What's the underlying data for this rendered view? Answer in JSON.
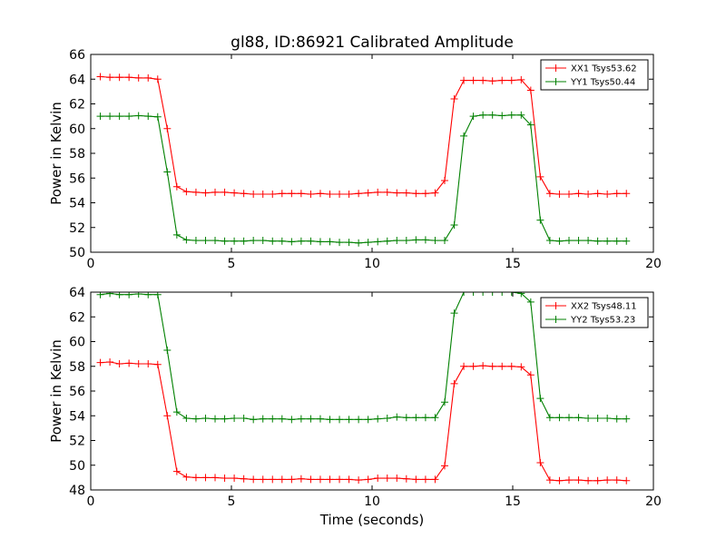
{
  "chart_data": [
    {
      "type": "line",
      "title": "gl88, ID:86921 Calibrated Amplitude",
      "xlabel": "",
      "ylabel": "Power in Kelvin",
      "xlim": [
        0,
        20
      ],
      "ylim": [
        50,
        66
      ],
      "xticks": [
        0,
        5,
        10,
        15,
        20
      ],
      "yticks": [
        50,
        52,
        54,
        56,
        58,
        60,
        62,
        64,
        66
      ],
      "grid": false,
      "legend_position": "top-right",
      "x": [
        0.34,
        0.68,
        1.02,
        1.36,
        1.7,
        2.04,
        2.38,
        2.72,
        3.06,
        3.4,
        3.74,
        4.08,
        4.42,
        4.76,
        5.1,
        5.44,
        5.78,
        6.12,
        6.46,
        6.8,
        7.14,
        7.48,
        7.82,
        8.16,
        8.5,
        8.84,
        9.18,
        9.52,
        9.86,
        10.2,
        10.54,
        10.88,
        11.22,
        11.56,
        11.9,
        12.24,
        12.58,
        12.92,
        13.26,
        13.6,
        13.94,
        14.28,
        14.62,
        14.96,
        15.3,
        15.64,
        15.98,
        16.32,
        16.66,
        17.0,
        17.34,
        17.68,
        18.02,
        18.36,
        18.7,
        19.04
      ],
      "series": [
        {
          "name": "XX1 Tsys53.62",
          "color": "#ff0000",
          "values": [
            64.2,
            64.15,
            64.15,
            64.15,
            64.1,
            64.1,
            64.0,
            60.0,
            55.3,
            54.9,
            54.85,
            54.8,
            54.85,
            54.85,
            54.8,
            54.75,
            54.7,
            54.7,
            54.7,
            54.75,
            54.75,
            54.75,
            54.7,
            54.75,
            54.7,
            54.7,
            54.7,
            54.75,
            54.8,
            54.85,
            54.85,
            54.8,
            54.8,
            54.75,
            54.75,
            54.8,
            55.8,
            62.4,
            63.9,
            63.9,
            63.9,
            63.85,
            63.9,
            63.9,
            63.95,
            63.1,
            56.1,
            54.75,
            54.7,
            54.7,
            54.75,
            54.7,
            54.75,
            54.7,
            54.75,
            54.75
          ]
        },
        {
          "name": "YY1 Tsys50.44",
          "color": "#008000",
          "values": [
            61.0,
            61.0,
            61.0,
            61.0,
            61.05,
            61.0,
            60.95,
            56.5,
            51.4,
            51.0,
            50.95,
            50.95,
            50.95,
            50.9,
            50.9,
            50.9,
            50.95,
            50.95,
            50.9,
            50.9,
            50.85,
            50.9,
            50.9,
            50.85,
            50.85,
            50.8,
            50.8,
            50.75,
            50.8,
            50.85,
            50.9,
            50.95,
            50.95,
            51.0,
            51.0,
            50.95,
            50.95,
            52.2,
            59.4,
            61.0,
            61.1,
            61.1,
            61.05,
            61.1,
            61.1,
            60.3,
            52.6,
            50.95,
            50.9,
            50.95,
            50.95,
            50.95,
            50.9,
            50.9,
            50.9,
            50.9
          ]
        }
      ]
    },
    {
      "type": "line",
      "title": "",
      "xlabel": "Time (seconds)",
      "ylabel": "Power in Kelvin",
      "xlim": [
        0,
        20
      ],
      "ylim": [
        48,
        64
      ],
      "xticks": [
        0,
        5,
        10,
        15,
        20
      ],
      "yticks": [
        48,
        50,
        52,
        54,
        56,
        58,
        60,
        62,
        64
      ],
      "grid": false,
      "legend_position": "top-right",
      "x": [
        0.34,
        0.68,
        1.02,
        1.36,
        1.7,
        2.04,
        2.38,
        2.72,
        3.06,
        3.4,
        3.74,
        4.08,
        4.42,
        4.76,
        5.1,
        5.44,
        5.78,
        6.12,
        6.46,
        6.8,
        7.14,
        7.48,
        7.82,
        8.16,
        8.5,
        8.84,
        9.18,
        9.52,
        9.86,
        10.2,
        10.54,
        10.88,
        11.22,
        11.56,
        11.9,
        12.24,
        12.58,
        12.92,
        13.26,
        13.6,
        13.94,
        14.28,
        14.62,
        14.96,
        15.3,
        15.64,
        15.98,
        16.32,
        16.66,
        17.0,
        17.34,
        17.68,
        18.02,
        18.36,
        18.7,
        19.04
      ],
      "series": [
        {
          "name": "XX2 Tsys48.11",
          "color": "#ff0000",
          "values": [
            58.3,
            58.35,
            58.2,
            58.25,
            58.2,
            58.2,
            58.15,
            54.0,
            49.5,
            49.05,
            49.0,
            49.0,
            49.0,
            48.95,
            48.95,
            48.9,
            48.85,
            48.85,
            48.85,
            48.85,
            48.85,
            48.9,
            48.85,
            48.85,
            48.85,
            48.85,
            48.85,
            48.8,
            48.85,
            48.95,
            48.95,
            48.95,
            48.9,
            48.85,
            48.85,
            48.85,
            49.95,
            56.6,
            58.0,
            58.0,
            58.05,
            58.0,
            58.0,
            58.0,
            57.95,
            57.3,
            50.2,
            48.8,
            48.75,
            48.8,
            48.8,
            48.75,
            48.75,
            48.8,
            48.8,
            48.75
          ]
        },
        {
          "name": "YY2 Tsys53.23",
          "color": "#008000",
          "values": [
            63.8,
            63.9,
            63.8,
            63.8,
            63.85,
            63.8,
            63.8,
            59.3,
            54.3,
            53.8,
            53.75,
            53.8,
            53.75,
            53.75,
            53.8,
            53.8,
            53.7,
            53.75,
            53.75,
            53.75,
            53.7,
            53.75,
            53.75,
            53.75,
            53.7,
            53.7,
            53.7,
            53.7,
            53.7,
            53.75,
            53.8,
            53.9,
            53.85,
            53.85,
            53.85,
            53.85,
            55.1,
            62.3,
            64.0,
            64.0,
            64.0,
            64.0,
            64.0,
            64.0,
            63.9,
            63.2,
            55.4,
            53.85,
            53.85,
            53.85,
            53.85,
            53.8,
            53.8,
            53.8,
            53.75,
            53.75
          ]
        }
      ]
    }
  ]
}
